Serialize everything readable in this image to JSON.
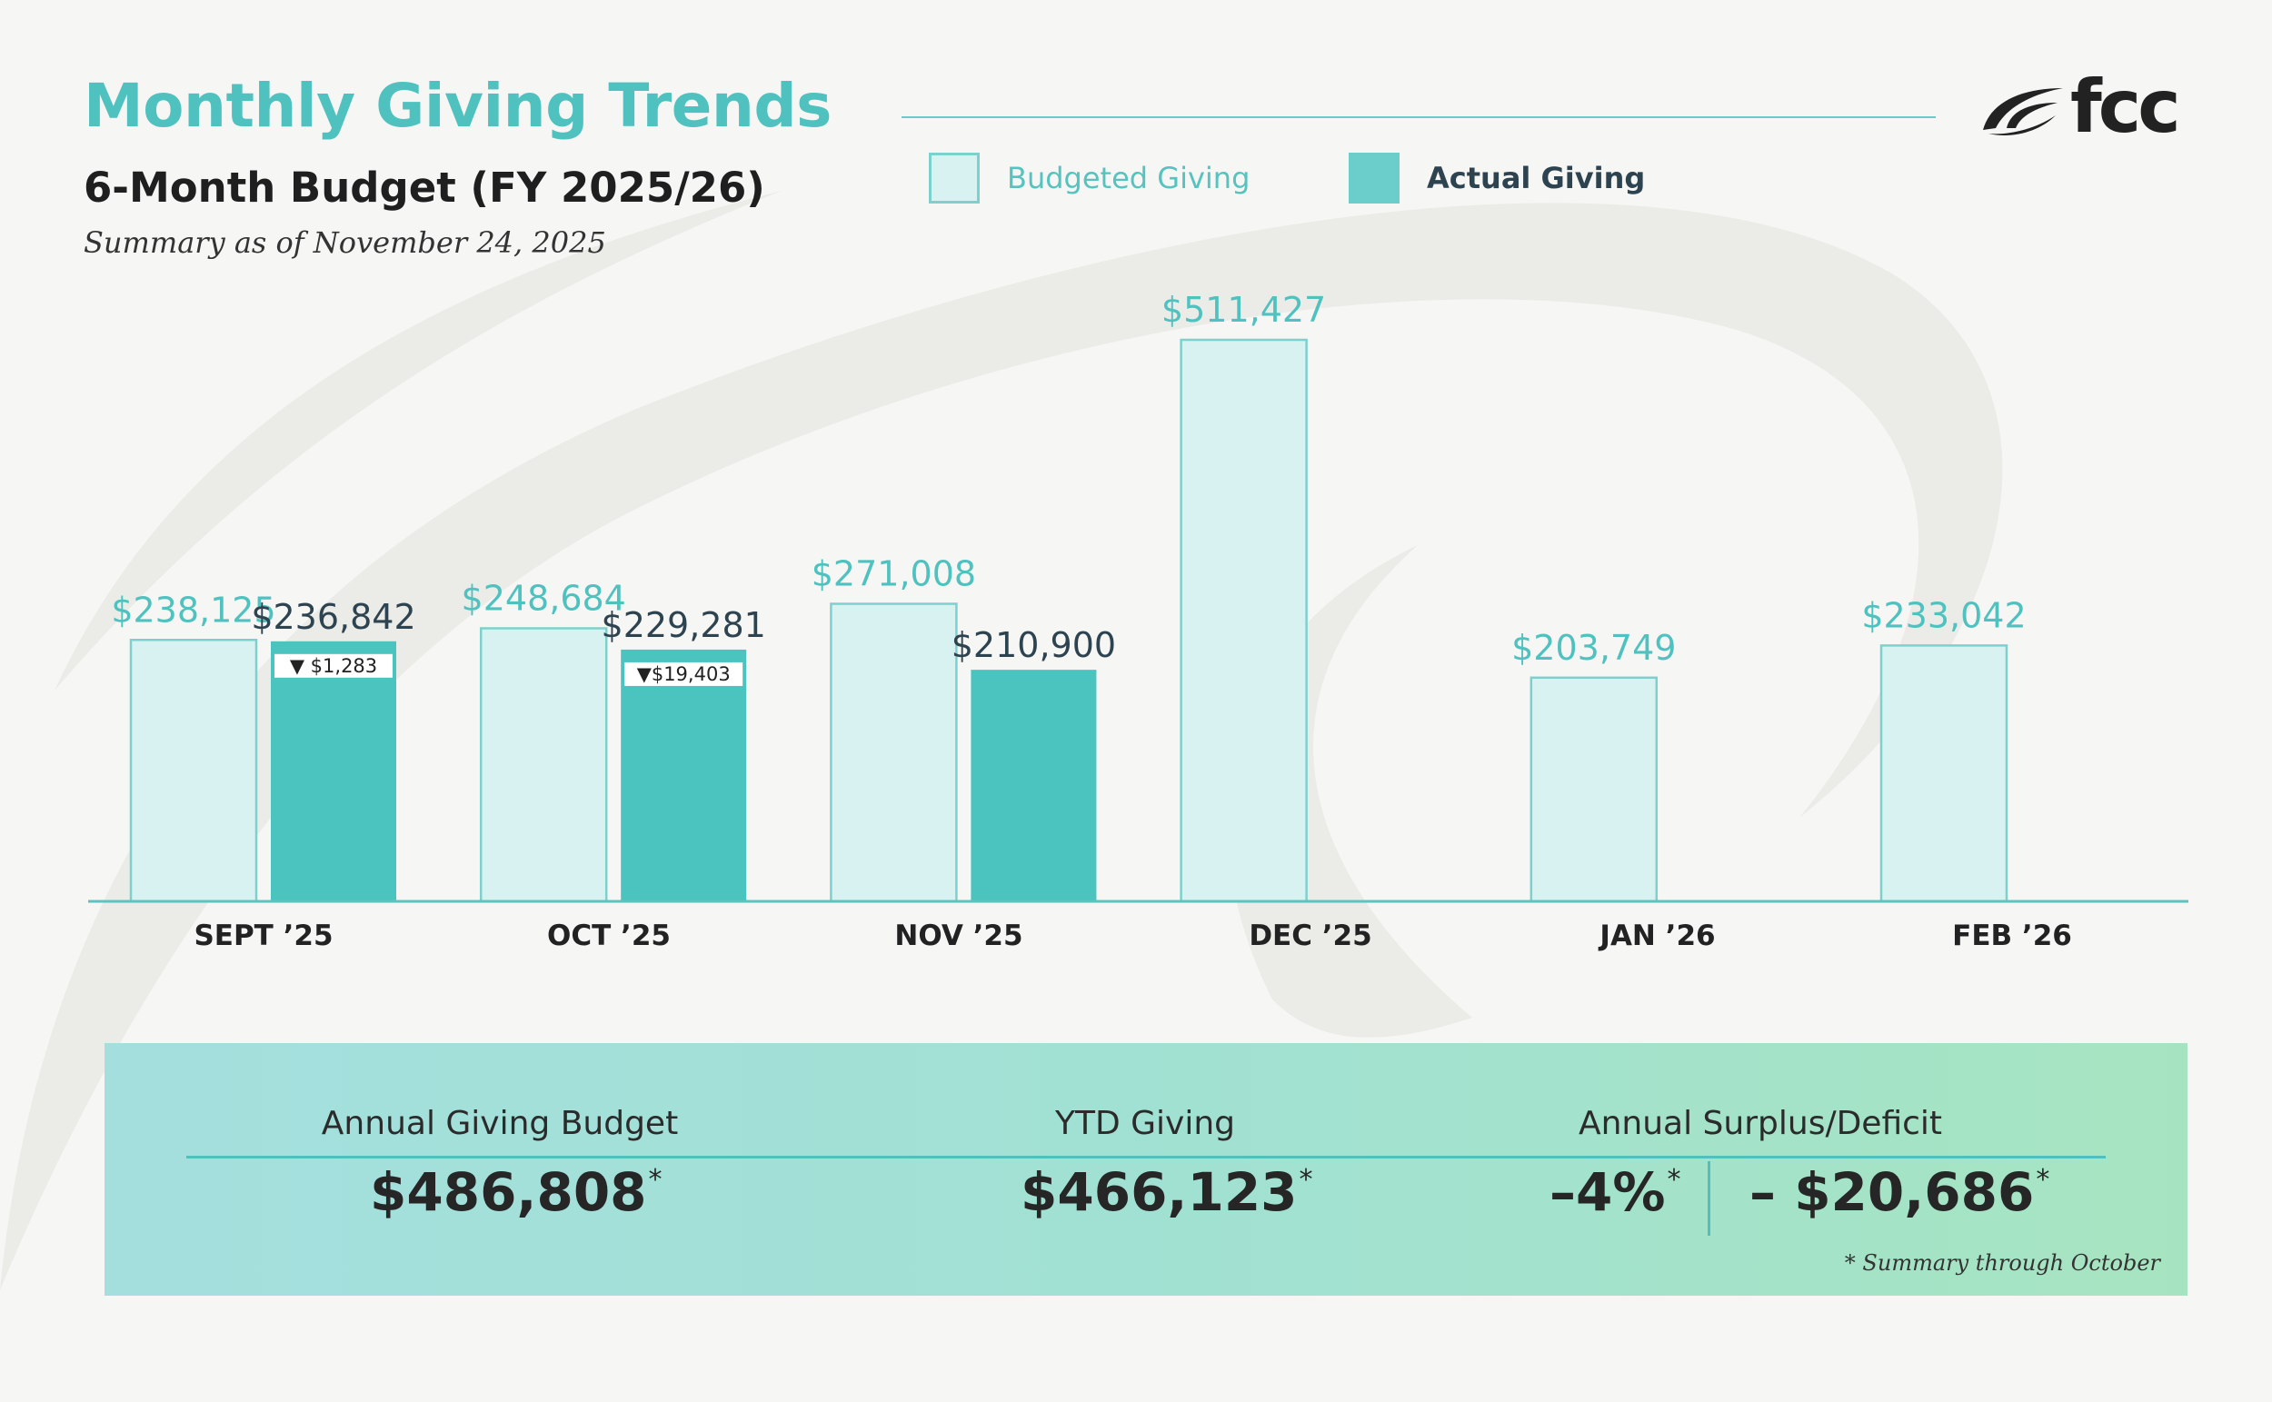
{
  "header": {
    "title": "Monthly Giving Trends",
    "subtitle": "6-Month Budget (FY 2025/26)",
    "as_of": "Summary as of November 24, 2025"
  },
  "logo": {
    "text": "fcc",
    "icon": "swoosh-logo-icon"
  },
  "legend": {
    "budgeted": "Budgeted Giving",
    "actual": "Actual Giving"
  },
  "colors": {
    "accent": "#4fc2bf",
    "budget_fill": "#d8f1f1",
    "budget_stroke": "#7ed0cc",
    "actual_fill": "#4bc3bf",
    "dark_label": "#2e4350"
  },
  "chart_data": {
    "type": "bar",
    "title": "Monthly Giving Trends",
    "categories": [
      "SEPT ’25",
      "OCT ’25",
      "NOV ’25",
      "DEC ’25",
      "JAN ’26",
      "FEB ’26"
    ],
    "series": [
      {
        "name": "Budgeted Giving",
        "values": [
          238125,
          248684,
          271008,
          511427,
          203749,
          233042
        ],
        "labels": [
          "$238,125",
          "$248,684",
          "$271,008",
          "$511,427",
          "$203,749",
          "$233,042"
        ]
      },
      {
        "name": "Actual Giving",
        "values": [
          236842,
          229281,
          210900,
          null,
          null,
          null
        ],
        "labels": [
          "$236,842",
          "$229,281",
          "$210,900",
          null,
          null,
          null
        ]
      }
    ],
    "variance": [
      {
        "month_index": 0,
        "label": "▼ $1,283"
      },
      {
        "month_index": 1,
        "label": "▼$19,403"
      }
    ],
    "ylim": [
      0,
      511427
    ],
    "xlabel": "",
    "ylabel": "",
    "legend": "top"
  },
  "summary": {
    "budget_label": "Annual Giving Budget",
    "budget_value": "$486,808",
    "ytd_label": "YTD Giving",
    "ytd_value": "$466,123",
    "surplus_label": "Annual Surplus/Deficit",
    "surplus_pct": "–4%",
    "surplus_amount": "– $20,686",
    "asterisk": "*",
    "footnote": "*  Summary through October"
  }
}
